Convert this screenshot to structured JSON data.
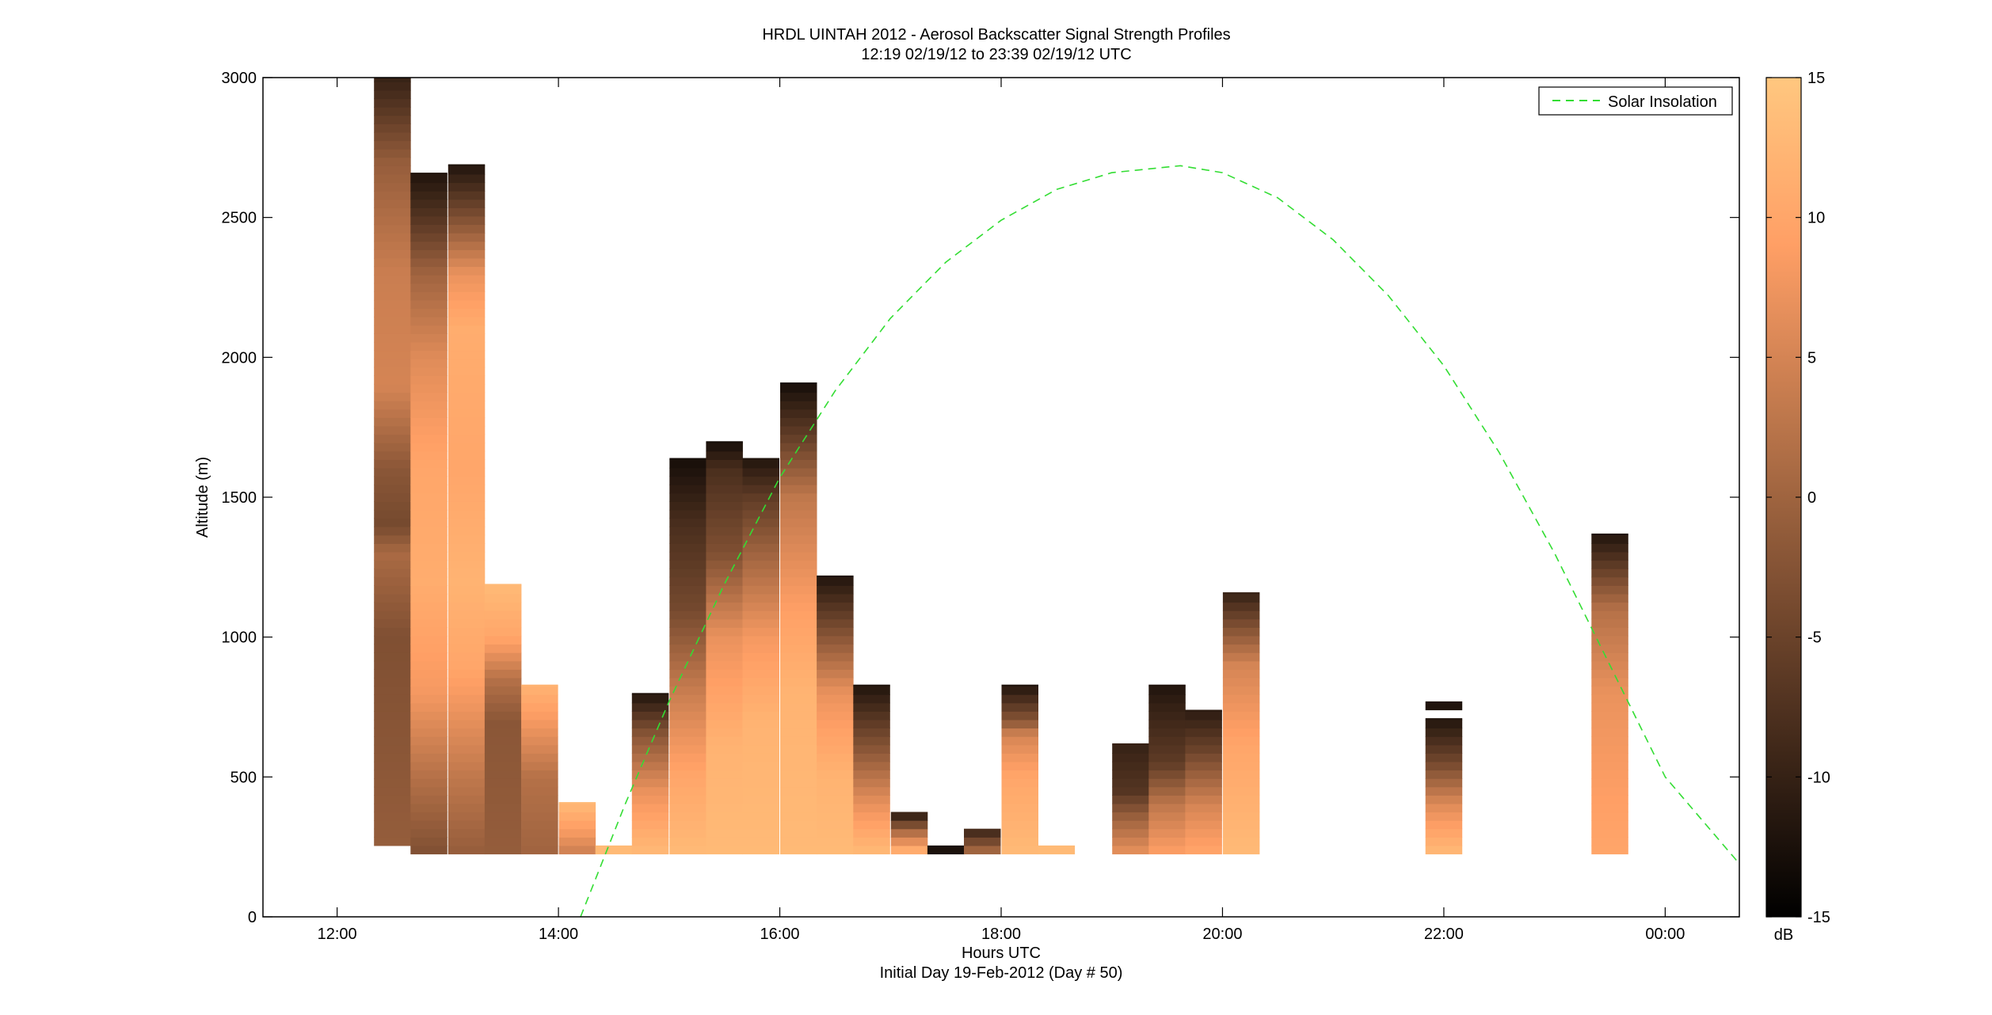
{
  "chart_data": {
    "type": "heatmap",
    "title_lines": [
      "HRDL UINTAH 2012 - Aerosol Backscatter Signal Strength Profiles",
      "12:19 02/19/12 to 23:39 02/19/12  UTC"
    ],
    "xlabel": "Hours UTC",
    "xlabel2": "Initial Day 19-Feb-2012 (Day # 50)",
    "ylabel": "Altitude (m)",
    "xlim": [
      11.33,
      24.67
    ],
    "ylim": [
      0,
      3000
    ],
    "x_ticks": [
      {
        "value": 12,
        "label": "12:00"
      },
      {
        "value": 14,
        "label": "14:00"
      },
      {
        "value": 16,
        "label": "16:00"
      },
      {
        "value": 18,
        "label": "18:00"
      },
      {
        "value": 20,
        "label": "20:00"
      },
      {
        "value": 22,
        "label": "22:00"
      },
      {
        "value": 24,
        "label": "00:00"
      }
    ],
    "y_ticks": [
      0,
      500,
      1000,
      1500,
      2000,
      2500,
      3000
    ],
    "colorbar": {
      "range": [
        -15,
        15
      ],
      "ticks": [
        -15,
        -10,
        -5,
        0,
        5,
        10,
        15
      ],
      "unit": "dB",
      "colormap": "copper"
    },
    "legend": {
      "placement": "top-right",
      "entries": [
        {
          "name": "Solar Insolation",
          "color": "#33dd33",
          "style": "dashed"
        }
      ]
    },
    "grid": false,
    "profile_width_hours": 0.333,
    "profiles": [
      {
        "x": 12.5,
        "bottom": 255,
        "top": 3000,
        "stops": [
          [
            255,
            -1
          ],
          [
            600,
            -2
          ],
          [
            1000,
            -3
          ],
          [
            1300,
            1
          ],
          [
            1400,
            -4
          ],
          [
            1600,
            -2
          ],
          [
            1900,
            5
          ],
          [
            2300,
            4
          ],
          [
            2700,
            -1
          ],
          [
            3000,
            -10
          ]
        ]
      },
      {
        "x": 12.83,
        "bottom": 225,
        "top": 2660,
        "stops": [
          [
            225,
            -3
          ],
          [
            500,
            2
          ],
          [
            800,
            8
          ],
          [
            1200,
            11
          ],
          [
            1600,
            10
          ],
          [
            2000,
            6
          ],
          [
            2300,
            0
          ],
          [
            2500,
            -7
          ],
          [
            2660,
            -12
          ]
        ]
      },
      {
        "x": 13.17,
        "bottom": 225,
        "top": 2690,
        "stops": [
          [
            225,
            -1
          ],
          [
            500,
            3
          ],
          [
            900,
            10
          ],
          [
            1200,
            12
          ],
          [
            1600,
            10
          ],
          [
            2100,
            11
          ],
          [
            2300,
            7
          ],
          [
            2500,
            -3
          ],
          [
            2690,
            -12
          ]
        ]
      },
      {
        "x": 13.5,
        "bottom": 225,
        "top": 1190,
        "stops": [
          [
            225,
            -1
          ],
          [
            700,
            -2
          ],
          [
            850,
            2
          ],
          [
            1000,
            10
          ],
          [
            1190,
            13
          ]
        ]
      },
      {
        "x": 13.83,
        "bottom": 225,
        "top": 830,
        "stops": [
          [
            225,
            0
          ],
          [
            500,
            2
          ],
          [
            830,
            12
          ]
        ]
      },
      {
        "x": 14.17,
        "bottom": 225,
        "top": 410,
        "stops": [
          [
            225,
            4
          ],
          [
            300,
            8
          ],
          [
            410,
            13
          ]
        ]
      },
      {
        "x": 14.5,
        "bottom": 225,
        "top": 255,
        "stops": [
          [
            225,
            13
          ],
          [
            255,
            13
          ]
        ]
      },
      {
        "x": 14.83,
        "bottom": 225,
        "top": 800,
        "stops": [
          [
            225,
            13
          ],
          [
            450,
            7
          ],
          [
            650,
            -2
          ],
          [
            800,
            -12
          ]
        ]
      },
      {
        "x": 15.17,
        "bottom": 225,
        "top": 1640,
        "stops": [
          [
            225,
            13
          ],
          [
            500,
            10
          ],
          [
            800,
            4
          ],
          [
            1100,
            -4
          ],
          [
            1400,
            -8
          ],
          [
            1640,
            -13
          ]
        ]
      },
      {
        "x": 15.5,
        "bottom": 225,
        "top": 1700,
        "stops": [
          [
            225,
            13
          ],
          [
            600,
            12
          ],
          [
            1000,
            7
          ],
          [
            1300,
            -3
          ],
          [
            1600,
            -8
          ],
          [
            1700,
            -13
          ]
        ]
      },
      {
        "x": 15.83,
        "bottom": 225,
        "top": 1640,
        "stops": [
          [
            225,
            13
          ],
          [
            700,
            12
          ],
          [
            1000,
            8
          ],
          [
            1300,
            0
          ],
          [
            1500,
            -6
          ],
          [
            1640,
            -12
          ]
        ]
      },
      {
        "x": 16.17,
        "bottom": 225,
        "top": 1910,
        "stops": [
          [
            225,
            13
          ],
          [
            800,
            12
          ],
          [
            1100,
            9
          ],
          [
            1500,
            3
          ],
          [
            1700,
            -5
          ],
          [
            1910,
            -13
          ]
        ]
      },
      {
        "x": 16.5,
        "bottom": 225,
        "top": 1220,
        "stops": [
          [
            225,
            13
          ],
          [
            500,
            12
          ],
          [
            800,
            7
          ],
          [
            1000,
            -2
          ],
          [
            1220,
            -12
          ]
        ]
      },
      {
        "x": 16.83,
        "bottom": 225,
        "top": 830,
        "stops": [
          [
            225,
            13
          ],
          [
            400,
            7
          ],
          [
            600,
            -2
          ],
          [
            830,
            -12
          ]
        ]
      },
      {
        "x": 17.17,
        "bottom": 225,
        "top": 375,
        "stops": [
          [
            225,
            13
          ],
          [
            300,
            2
          ],
          [
            375,
            -12
          ]
        ]
      },
      {
        "x": 17.5,
        "bottom": 225,
        "top": 255,
        "stops": [
          [
            225,
            -12
          ],
          [
            255,
            -13
          ]
        ]
      },
      {
        "x": 17.83,
        "bottom": 225,
        "top": 315,
        "stops": [
          [
            225,
            2
          ],
          [
            270,
            -4
          ],
          [
            315,
            -10
          ]
        ]
      },
      {
        "x": 18.17,
        "bottom": 225,
        "top": 830,
        "stops": [
          [
            225,
            13
          ],
          [
            500,
            10
          ],
          [
            650,
            5
          ],
          [
            700,
            -2
          ],
          [
            830,
            -12
          ]
        ]
      },
      {
        "x": 18.5,
        "bottom": 225,
        "top": 255,
        "stops": [
          [
            225,
            13
          ],
          [
            255,
            13
          ]
        ]
      },
      {
        "x": 19.17,
        "bottom": 225,
        "top": 620,
        "stops": [
          [
            225,
            7
          ],
          [
            350,
            0
          ],
          [
            450,
            -7
          ],
          [
            620,
            -10
          ]
        ]
      },
      {
        "x": 19.5,
        "bottom": 225,
        "top": 830,
        "stops": [
          [
            225,
            9
          ],
          [
            400,
            3
          ],
          [
            550,
            -6
          ],
          [
            750,
            -10
          ],
          [
            830,
            -12
          ]
        ]
      },
      {
        "x": 19.83,
        "bottom": 225,
        "top": 740,
        "stops": [
          [
            225,
            10
          ],
          [
            400,
            5
          ],
          [
            600,
            -5
          ],
          [
            740,
            -11
          ]
        ]
      },
      {
        "x": 20.17,
        "bottom": 225,
        "top": 1160,
        "stops": [
          [
            225,
            13
          ],
          [
            600,
            10
          ],
          [
            900,
            5
          ],
          [
            1160,
            -10
          ]
        ]
      },
      {
        "x": 22.0,
        "bottom": 225,
        "top": 710,
        "stops": [
          [
            225,
            13
          ],
          [
            400,
            6
          ],
          [
            550,
            -4
          ],
          [
            710,
            -12
          ]
        ]
      },
      {
        "x": 22.0,
        "bottom": 740,
        "top": 770,
        "stops": [
          [
            740,
            -12
          ],
          [
            770,
            -12
          ]
        ]
      },
      {
        "x": 23.5,
        "bottom": 225,
        "top": 1370,
        "stops": [
          [
            225,
            10
          ],
          [
            800,
            7
          ],
          [
            1100,
            2
          ],
          [
            1370,
            -12
          ]
        ]
      }
    ],
    "series": [
      {
        "name": "Solar Insolation",
        "type": "line",
        "x": [
          14.2,
          14.6,
          15.0,
          15.5,
          16.0,
          16.5,
          17.0,
          17.5,
          18.0,
          18.5,
          19.0,
          19.62,
          20.0,
          20.5,
          21.0,
          21.5,
          22.0,
          22.5,
          23.0,
          23.5,
          24.0,
          24.67
        ],
        "y": [
          0,
          400,
          770,
          1190,
          1570,
          1880,
          2140,
          2340,
          2490,
          2600,
          2660,
          2685,
          2660,
          2570,
          2420,
          2220,
          1970,
          1660,
          1300,
          900,
          500,
          190
        ]
      }
    ]
  }
}
